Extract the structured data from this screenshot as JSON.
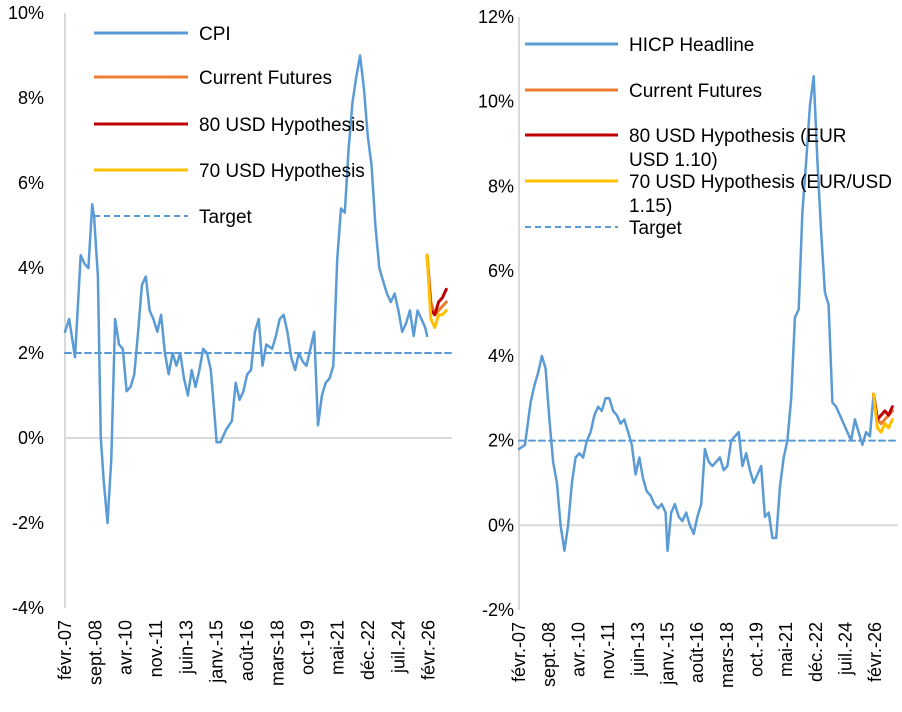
{
  "chart_data": [
    {
      "type": "line",
      "title": "",
      "xlabel": "",
      "ylabel": "",
      "ylim": [
        -4,
        10
      ],
      "y_ticks": [
        "-4%",
        "-2%",
        "0%",
        "2%",
        "4%",
        "6%",
        "8%",
        "10%"
      ],
      "y_tick_values": [
        -4,
        -2,
        0,
        2,
        4,
        6,
        8,
        10
      ],
      "x_ticks": [
        "févr.-07",
        "sept.-08",
        "avr.-10",
        "nov.-11",
        "juin-13",
        "janv.-15",
        "août-16",
        "mars-18",
        "oct.-19",
        "mai-21",
        "déc.-22",
        "juil.-24",
        "févr.-26"
      ],
      "x_tick_values": [
        2007.08,
        2008.67,
        2010.25,
        2011.83,
        2013.42,
        2015.0,
        2016.58,
        2018.17,
        2019.75,
        2021.33,
        2022.92,
        2024.5,
        2026.08
      ],
      "xlim": [
        2007.08,
        2027.3
      ],
      "grid": false,
      "legend_position": "top-left",
      "series": [
        {
          "name": "CPI",
          "color": "#5b9bd5",
          "x": [
            2007.08,
            2007.3,
            2007.6,
            2007.9,
            2008.1,
            2008.3,
            2008.5,
            2008.6,
            2008.8,
            2008.95,
            2009.1,
            2009.3,
            2009.5,
            2009.7,
            2009.9,
            2010.1,
            2010.3,
            2010.5,
            2010.7,
            2010.9,
            2011.1,
            2011.3,
            2011.5,
            2011.7,
            2011.9,
            2012.1,
            2012.3,
            2012.5,
            2012.7,
            2012.9,
            2013.1,
            2013.3,
            2013.5,
            2013.7,
            2013.9,
            2014.1,
            2014.3,
            2014.5,
            2014.7,
            2014.9,
            2015.0,
            2015.2,
            2015.5,
            2015.8,
            2016.0,
            2016.2,
            2016.4,
            2016.6,
            2016.8,
            2017.0,
            2017.2,
            2017.4,
            2017.6,
            2017.9,
            2018.1,
            2018.3,
            2018.5,
            2018.7,
            2018.9,
            2019.1,
            2019.3,
            2019.5,
            2019.7,
            2019.9,
            2020.1,
            2020.3,
            2020.5,
            2020.7,
            2020.9,
            2021.1,
            2021.3,
            2021.5,
            2021.7,
            2021.9,
            2022.1,
            2022.3,
            2022.5,
            2022.7,
            2022.9,
            2023.1,
            2023.3,
            2023.5,
            2023.7,
            2023.9,
            2024.1,
            2024.3,
            2024.5,
            2024.7,
            2024.9,
            2025.1,
            2025.3,
            2025.5,
            2025.7,
            2025.9,
            2026.0
          ],
          "values": [
            2.5,
            2.8,
            1.9,
            4.3,
            4.1,
            4.0,
            5.5,
            5.2,
            3.8,
            0.0,
            -1.0,
            -2.0,
            -0.5,
            2.8,
            2.2,
            2.1,
            1.1,
            1.2,
            1.5,
            2.5,
            3.6,
            3.8,
            3.0,
            2.8,
            2.5,
            2.9,
            2.0,
            1.5,
            2.0,
            1.7,
            2.0,
            1.4,
            1.0,
            1.6,
            1.2,
            1.6,
            2.1,
            2.0,
            1.6,
            0.5,
            -0.1,
            -0.1,
            0.2,
            0.4,
            1.3,
            0.9,
            1.1,
            1.5,
            1.6,
            2.5,
            2.8,
            1.7,
            2.2,
            2.1,
            2.4,
            2.8,
            2.9,
            2.5,
            1.9,
            1.6,
            2.0,
            1.8,
            1.7,
            2.1,
            2.5,
            0.3,
            1.0,
            1.3,
            1.4,
            1.7,
            4.2,
            5.4,
            5.3,
            6.8,
            7.9,
            8.5,
            9.0,
            8.2,
            7.1,
            6.4,
            5.0,
            4.0,
            3.7,
            3.4,
            3.2,
            3.4,
            3.0,
            2.5,
            2.7,
            3.0,
            2.4,
            3.0,
            2.8,
            2.6,
            2.4
          ]
        },
        {
          "name": "Current Futures",
          "color": "#ed7d31",
          "x": [
            2026.0,
            2026.2,
            2026.4,
            2026.6,
            2026.8,
            2027.0
          ],
          "values": [
            4.3,
            3.2,
            2.9,
            3.0,
            3.1,
            3.2
          ]
        },
        {
          "name": "80 USD Hypothesis",
          "color": "#c00000",
          "x": [
            2026.0,
            2026.2,
            2026.4,
            2026.6,
            2026.8,
            2027.0
          ],
          "values": [
            4.3,
            3.0,
            2.9,
            3.2,
            3.3,
            3.5
          ]
        },
        {
          "name": "70 USD Hypothesis",
          "color": "#ffc000",
          "x": [
            2026.0,
            2026.2,
            2026.4,
            2026.6,
            2026.8,
            2027.0
          ],
          "values": [
            4.3,
            2.8,
            2.6,
            2.9,
            2.9,
            3.0
          ]
        },
        {
          "name": "Target",
          "color": "#5b9bd5",
          "dashed": true,
          "x": [
            2007.08,
            2027.3
          ],
          "values": [
            2,
            2
          ]
        }
      ]
    },
    {
      "type": "line",
      "title": "",
      "xlabel": "",
      "ylabel": "",
      "ylim": [
        -2,
        12
      ],
      "y_ticks": [
        "-2%",
        "0%",
        "2%",
        "4%",
        "6%",
        "8%",
        "10%",
        "12%"
      ],
      "y_tick_values": [
        -2,
        0,
        2,
        4,
        6,
        8,
        10,
        12
      ],
      "x_ticks": [
        "févr.-07",
        "sept.-08",
        "avr.-10",
        "nov.-11",
        "juin-13",
        "janv.-15",
        "août-16",
        "mars-18",
        "oct.-19",
        "mai-21",
        "déc.-22",
        "juil.-24",
        "févr.-26"
      ],
      "x_tick_values": [
        2007.08,
        2008.67,
        2010.25,
        2011.83,
        2013.42,
        2015.0,
        2016.58,
        2018.17,
        2019.75,
        2021.33,
        2022.92,
        2024.5,
        2026.08
      ],
      "xlim": [
        2007.08,
        2027.3
      ],
      "grid": false,
      "legend_position": "top-left",
      "series": [
        {
          "name": "HICP Headline",
          "color": "#5b9bd5",
          "x": [
            2007.08,
            2007.4,
            2007.7,
            2007.9,
            2008.1,
            2008.3,
            2008.5,
            2008.7,
            2008.9,
            2009.1,
            2009.3,
            2009.5,
            2009.7,
            2009.9,
            2010.1,
            2010.3,
            2010.5,
            2010.7,
            2010.9,
            2011.1,
            2011.3,
            2011.5,
            2011.7,
            2011.9,
            2012.1,
            2012.3,
            2012.5,
            2012.7,
            2012.9,
            2013.1,
            2013.3,
            2013.5,
            2013.7,
            2013.9,
            2014.1,
            2014.3,
            2014.5,
            2014.7,
            2014.9,
            2015.0,
            2015.2,
            2015.4,
            2015.6,
            2015.8,
            2016.0,
            2016.2,
            2016.4,
            2016.6,
            2016.8,
            2017.0,
            2017.2,
            2017.4,
            2017.6,
            2017.8,
            2018.0,
            2018.2,
            2018.4,
            2018.6,
            2018.8,
            2019.0,
            2019.2,
            2019.4,
            2019.6,
            2019.8,
            2020.0,
            2020.2,
            2020.4,
            2020.6,
            2020.8,
            2021.0,
            2021.2,
            2021.4,
            2021.6,
            2021.8,
            2022.0,
            2022.2,
            2022.4,
            2022.6,
            2022.8,
            2023.0,
            2023.2,
            2023.4,
            2023.6,
            2023.8,
            2024.0,
            2024.2,
            2024.4,
            2024.6,
            2024.8,
            2025.0,
            2025.2,
            2025.4,
            2025.6,
            2025.8,
            2026.0
          ],
          "values": [
            1.8,
            1.9,
            2.9,
            3.3,
            3.6,
            4.0,
            3.7,
            2.5,
            1.5,
            1.0,
            0.0,
            -0.6,
            0.0,
            1.0,
            1.6,
            1.7,
            1.6,
            2.0,
            2.2,
            2.6,
            2.8,
            2.7,
            3.0,
            3.0,
            2.7,
            2.6,
            2.4,
            2.5,
            2.2,
            1.9,
            1.2,
            1.6,
            1.1,
            0.8,
            0.7,
            0.5,
            0.4,
            0.5,
            0.3,
            -0.6,
            0.3,
            0.5,
            0.2,
            0.1,
            0.3,
            0.0,
            -0.2,
            0.2,
            0.5,
            1.8,
            1.5,
            1.4,
            1.5,
            1.6,
            1.3,
            1.4,
            2.0,
            2.1,
            2.2,
            1.4,
            1.7,
            1.3,
            1.0,
            1.2,
            1.4,
            0.2,
            0.3,
            -0.3,
            -0.3,
            0.9,
            1.6,
            2.0,
            3.0,
            4.9,
            5.1,
            7.4,
            8.6,
            9.9,
            10.6,
            8.6,
            6.9,
            5.5,
            5.2,
            2.9,
            2.8,
            2.6,
            2.4,
            2.2,
            2.0,
            2.5,
            2.2,
            1.9,
            2.2,
            2.1,
            3.1
          ]
        },
        {
          "name": "Current Futures",
          "color": "#ed7d31",
          "x": [
            2026.0,
            2026.2,
            2026.4,
            2026.6,
            2026.8,
            2027.0
          ],
          "values": [
            3.1,
            2.5,
            2.4,
            2.5,
            2.6,
            2.7
          ]
        },
        {
          "name": "80 USD Hypothesis (EUR USD 1.10)",
          "color": "#c00000",
          "x": [
            2026.0,
            2026.2,
            2026.4,
            2026.6,
            2026.8,
            2027.0
          ],
          "values": [
            3.1,
            2.5,
            2.6,
            2.7,
            2.6,
            2.8
          ]
        },
        {
          "name": "70 USD Hypothesis (EUR/USD 1.15)",
          "color": "#ffc000",
          "x": [
            2026.0,
            2026.2,
            2026.4,
            2026.6,
            2026.8,
            2027.0
          ],
          "values": [
            3.1,
            2.3,
            2.2,
            2.4,
            2.3,
            2.5
          ]
        },
        {
          "name": "Target",
          "color": "#5b9bd5",
          "dashed": true,
          "x": [
            2007.08,
            2027.3
          ],
          "values": [
            2,
            2
          ]
        }
      ]
    }
  ]
}
